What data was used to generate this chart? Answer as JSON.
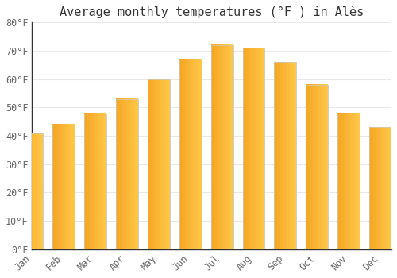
{
  "title": "Average monthly temperatures (°F ) in Alès",
  "months": [
    "Jan",
    "Feb",
    "Mar",
    "Apr",
    "May",
    "Jun",
    "Jul",
    "Aug",
    "Sep",
    "Oct",
    "Nov",
    "Dec"
  ],
  "values": [
    41,
    44,
    48,
    53,
    60,
    67,
    72,
    71,
    66,
    58,
    48,
    43
  ],
  "bar_color_left": "#F5A623",
  "bar_color_right": "#FFC84A",
  "bar_edge_color": "#cccccc",
  "background_color": "#ffffff",
  "plot_bg_color": "#ffffff",
  "ylim": [
    0,
    80
  ],
  "yticks": [
    0,
    10,
    20,
    30,
    40,
    50,
    60,
    70,
    80
  ],
  "ytick_labels": [
    "0°F",
    "10°F",
    "20°F",
    "30°F",
    "40°F",
    "50°F",
    "60°F",
    "70°F",
    "80°F"
  ],
  "title_fontsize": 11,
  "tick_fontsize": 8.5,
  "grid_color": "#e8e8e8",
  "left_spine_color": "#333333"
}
